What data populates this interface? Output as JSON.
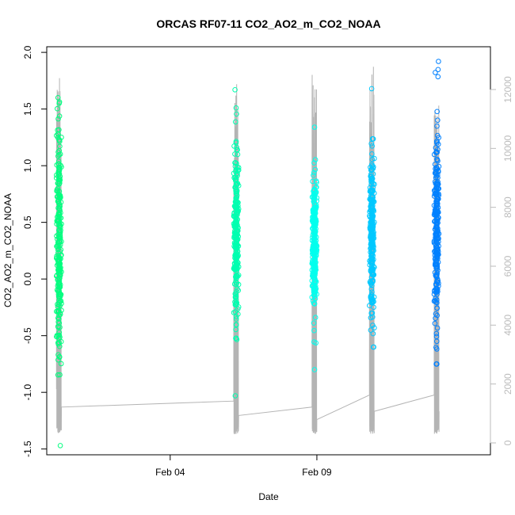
{
  "chart_data": {
    "type": "scatter",
    "title": "ORCAS RF07-11 CO2_AO2_m_CO2_NOAA",
    "xlabel": "Date",
    "ylabel": "CO2_AO2_m_CO2_NOAA",
    "ylim": [
      -1.5,
      2.0
    ],
    "y_ticks": [
      "-1.5",
      "-1.0",
      "-0.5",
      "0.0",
      "0.5",
      "1.0",
      "1.5",
      "2.0"
    ],
    "x_ticks": [
      {
        "label": "Feb 04",
        "date": "2016-02-04"
      },
      {
        "label": "Feb 09",
        "date": "2016-02-09"
      }
    ],
    "xlim": [
      "2016-01-30T19:00",
      "2016-02-14T22:00"
    ],
    "y2lim": [
      0,
      13000
    ],
    "y2_ticks": [
      "0",
      "2000",
      "4000",
      "6000",
      "8000",
      "10000",
      "12000"
    ],
    "grid": false,
    "legend": "none",
    "series": [
      {
        "color": "#00ff7f",
        "x_range": [
          "2016-01-31T03:00",
          "2016-01-31T07:00"
        ],
        "y_mean": 0.3,
        "y_min": -1.47,
        "y_max": 1.6,
        "altitude_start": 2000,
        "altitude_max": 12500
      },
      {
        "color": "#00ffb0",
        "x_range": [
          "2016-02-06T04:00",
          "2016-02-06T08:00"
        ],
        "y_mean": 0.35,
        "y_min": -1.03,
        "y_max": 1.67,
        "altitude_start": 1600,
        "altitude_max": 12200
      },
      {
        "color": "#00ffee",
        "x_range": [
          "2016-02-08T20:00",
          "2016-02-09T00:00"
        ],
        "y_mean": 0.35,
        "y_min": -0.8,
        "y_max": 1.34,
        "altitude_start": 1400,
        "altitude_max": 12500
      },
      {
        "color": "#00c8ff",
        "x_range": [
          "2016-02-10T19:00",
          "2016-02-10T23:00"
        ],
        "y_mean": 0.4,
        "y_min": -0.6,
        "y_max": 1.68,
        "altitude_start": 1800,
        "altitude_max": 12800
      },
      {
        "color": "#0080ff",
        "x_range": [
          "2016-02-13T00:00",
          "2016-02-13T04:00"
        ],
        "y_mean": 0.45,
        "y_min": -0.75,
        "y_max": 1.92,
        "altitude_start": 1800,
        "altitude_max": 11500
      }
    ]
  }
}
